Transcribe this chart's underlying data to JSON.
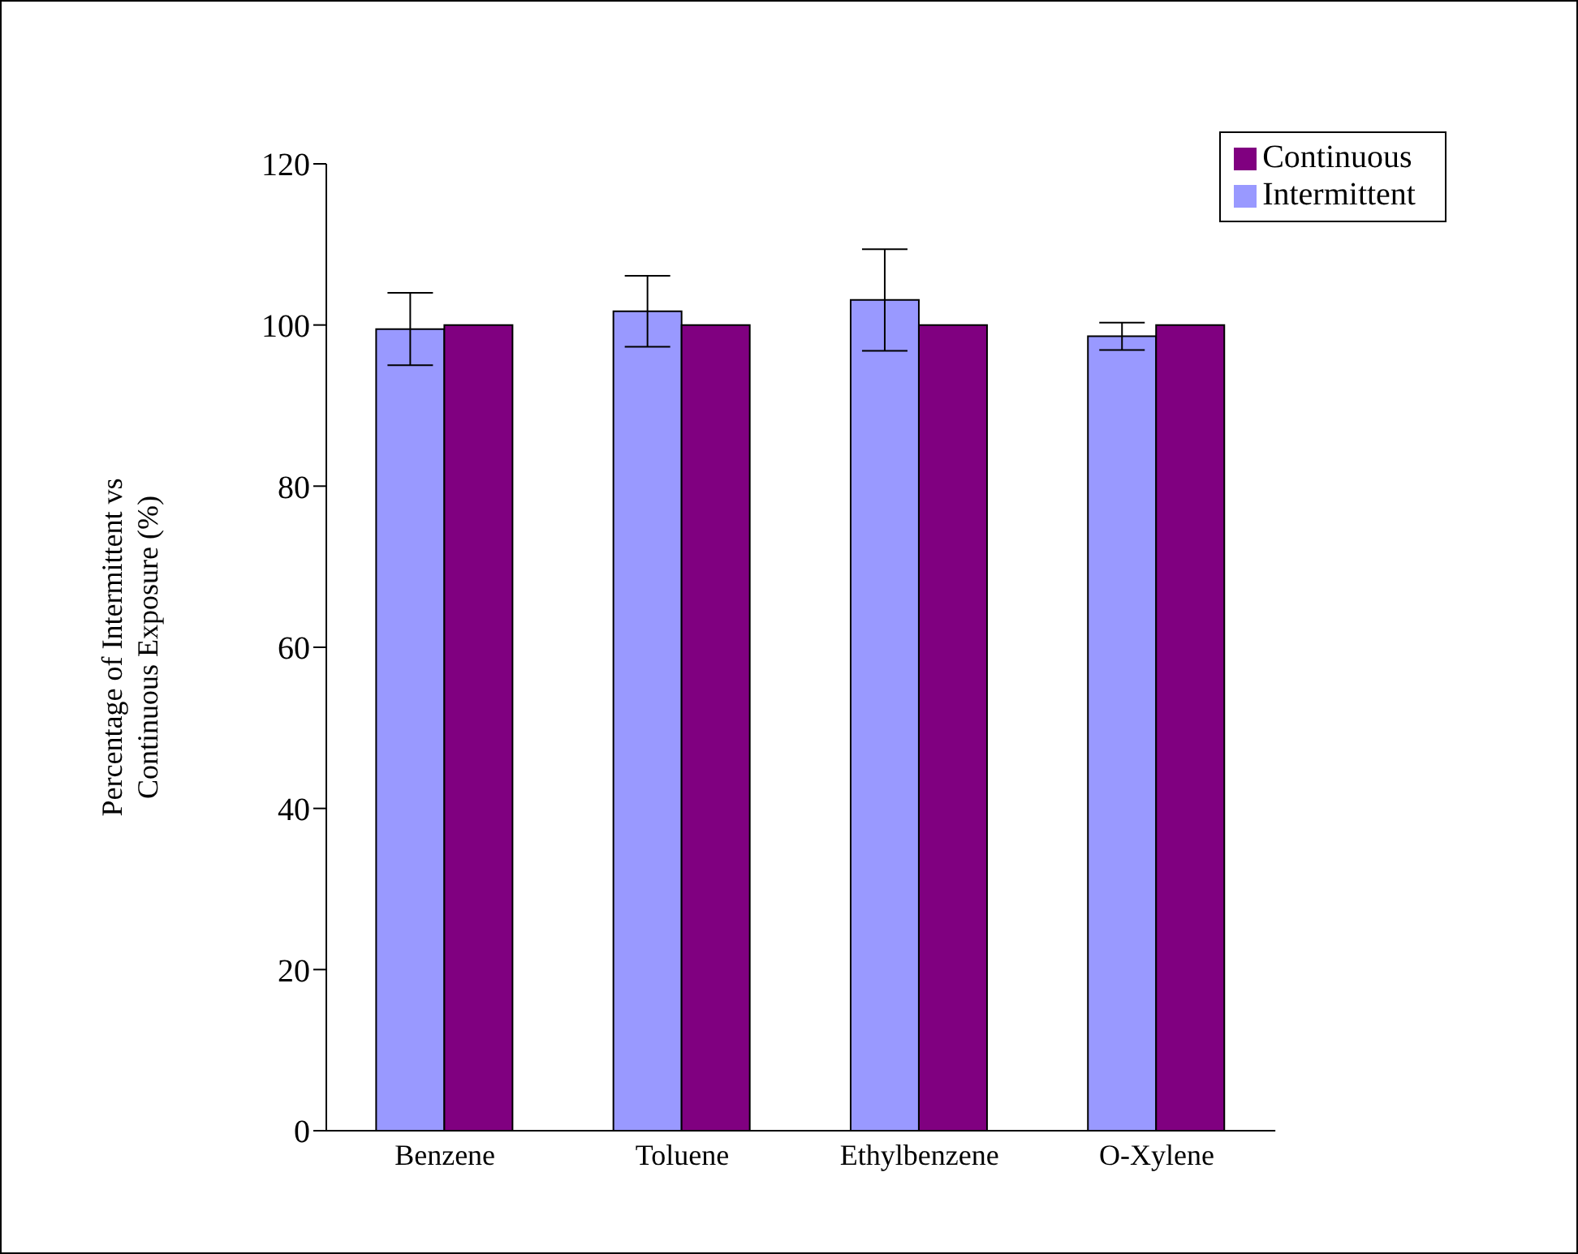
{
  "chart_data": {
    "type": "bar",
    "ylabel": "Percentage of Intermittent vs Continuous Exposure (%)",
    "categories": [
      "Benzene",
      "Toluene",
      "Ethylbenzene",
      "O-Xylene"
    ],
    "series": [
      {
        "name": "Intermittent",
        "color": "#9999ff",
        "values": [
          99.5,
          101.7,
          103.1,
          98.6
        ],
        "errors": [
          4.5,
          4.4,
          6.3,
          1.7
        ]
      },
      {
        "name": "Continuous",
        "color": "#800080",
        "values": [
          100,
          100,
          100,
          100
        ]
      }
    ],
    "ylim": [
      0,
      120
    ],
    "yticks": [
      0,
      20,
      40,
      60,
      80,
      100,
      120
    ],
    "grid": false,
    "legend": "top right"
  }
}
